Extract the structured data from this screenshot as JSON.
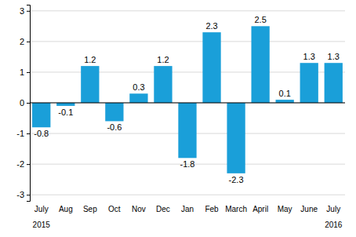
{
  "chart_data": {
    "type": "bar",
    "categories": [
      "July",
      "Aug",
      "Sep",
      "Oct",
      "Nov",
      "Dec",
      "Jan",
      "Feb",
      "March",
      "April",
      "May",
      "June",
      "July"
    ],
    "values": [
      -0.8,
      -0.1,
      1.2,
      -0.6,
      0.3,
      1.2,
      -1.8,
      2.3,
      -2.3,
      2.5,
      0.1,
      1.3,
      1.3
    ],
    "color": "#1a9fd9",
    "ylim": [
      -3.2,
      3.2
    ],
    "yticks": [
      -3,
      -2,
      -1,
      0,
      1,
      2,
      3
    ],
    "grid": true,
    "data_labels": true,
    "annotations": [
      "2015",
      "2016"
    ]
  }
}
